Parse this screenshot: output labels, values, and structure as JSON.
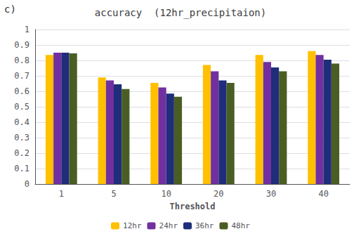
{
  "chart_data": {
    "type": "bar",
    "title": "accuracy  (12hr_precipitaion)",
    "xlabel": "Threshold",
    "annotations": [
      "c)"
    ],
    "categories": [
      "1",
      "5",
      "10",
      "20",
      "30",
      "40"
    ],
    "series": [
      {
        "name": "12hr",
        "color": "#FFC000",
        "values": [
          0.835,
          0.69,
          0.655,
          0.77,
          0.835,
          0.86
        ]
      },
      {
        "name": "24hr",
        "color": "#7030A0",
        "values": [
          0.85,
          0.67,
          0.625,
          0.73,
          0.79,
          0.835
        ]
      },
      {
        "name": "36hr",
        "color": "#1F2D7B",
        "values": [
          0.85,
          0.645,
          0.585,
          0.67,
          0.755,
          0.805
        ]
      },
      {
        "name": "48hr",
        "color": "#4A5E23",
        "values": [
          0.845,
          0.615,
          0.565,
          0.655,
          0.73,
          0.78
        ]
      }
    ],
    "ylim": [
      0,
      1.0
    ],
    "yticks": [
      0,
      0.1,
      0.2,
      0.3,
      0.4,
      0.5,
      0.6,
      0.7,
      0.8,
      0.9,
      1
    ],
    "grid": true,
    "legend": "bottom"
  }
}
